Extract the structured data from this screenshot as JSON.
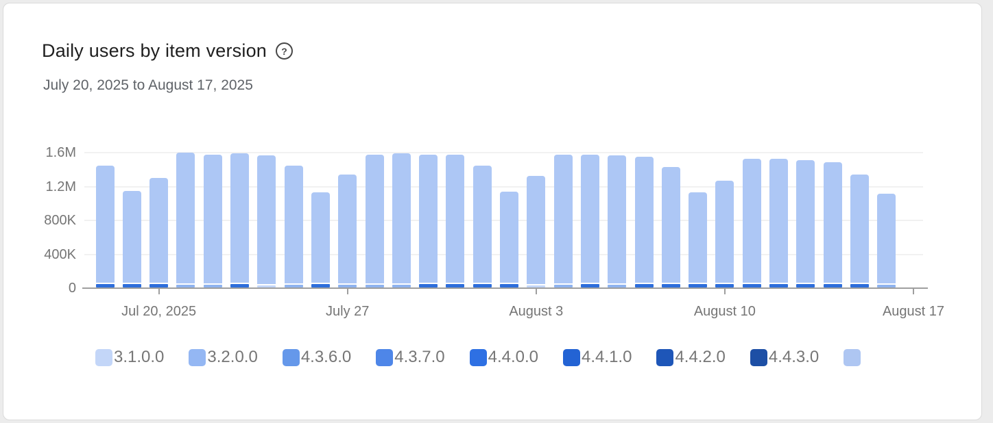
{
  "header": {
    "title": "Daily users by item version",
    "help_icon": "?",
    "subtitle": "July 20, 2025 to August 17, 2025"
  },
  "chart_data": {
    "type": "bar",
    "stacked": true,
    "title": "Daily users by item version",
    "date_range": "July 20, 2025 to August 17, 2025",
    "ylim": [
      0,
      1600000
    ],
    "grid": "horizontal",
    "legend_position": "bottom",
    "yticks": [
      {
        "label": "1.6M",
        "value": 1600000
      },
      {
        "label": "1.2M",
        "value": 1200000
      },
      {
        "label": "800K",
        "value": 800000
      },
      {
        "label": "400K",
        "value": 400000
      },
      {
        "label": "0",
        "value": 0
      }
    ],
    "xticks": [
      {
        "label": "Jul 20, 2025",
        "day_index": 2
      },
      {
        "label": "July 27",
        "day_index": 9
      },
      {
        "label": "August 3",
        "day_index": 16
      },
      {
        "label": "August 10",
        "day_index": 23
      },
      {
        "label": "August 17",
        "day_index": 30
      }
    ],
    "bars": [
      {
        "date": "Jul 18",
        "total": 1440000,
        "base": "bright"
      },
      {
        "date": "Jul 19",
        "total": 1140000,
        "base": "bright"
      },
      {
        "date": "Jul 20",
        "total": 1290000,
        "base": "bright"
      },
      {
        "date": "Jul 21",
        "total": 1590000,
        "base": "light"
      },
      {
        "date": "Jul 22",
        "total": 1570000,
        "base": "light"
      },
      {
        "date": "Jul 23",
        "total": 1580000,
        "base": "bright"
      },
      {
        "date": "Jul 24",
        "total": 1560000,
        "base": "faint"
      },
      {
        "date": "Jul 25",
        "total": 1440000,
        "base": "light"
      },
      {
        "date": "Jul 26",
        "total": 1120000,
        "base": "bright"
      },
      {
        "date": "Jul 27",
        "total": 1330000,
        "base": "light"
      },
      {
        "date": "Jul 28",
        "total": 1570000,
        "base": "light"
      },
      {
        "date": "Jul 29",
        "total": 1580000,
        "base": "light"
      },
      {
        "date": "Jul 30",
        "total": 1570000,
        "base": "bright"
      },
      {
        "date": "Jul 31",
        "total": 1570000,
        "base": "bright"
      },
      {
        "date": "Aug 1",
        "total": 1440000,
        "base": "bright"
      },
      {
        "date": "Aug 2",
        "total": 1130000,
        "base": "bright"
      },
      {
        "date": "Aug 3",
        "total": 1320000,
        "base": "faint"
      },
      {
        "date": "Aug 4",
        "total": 1570000,
        "base": "light"
      },
      {
        "date": "Aug 5",
        "total": 1570000,
        "base": "bright"
      },
      {
        "date": "Aug 6",
        "total": 1560000,
        "base": "light"
      },
      {
        "date": "Aug 7",
        "total": 1540000,
        "base": "bright"
      },
      {
        "date": "Aug 8",
        "total": 1420000,
        "base": "bright"
      },
      {
        "date": "Aug 9",
        "total": 1120000,
        "base": "bright"
      },
      {
        "date": "Aug 10",
        "total": 1260000,
        "base": "bright"
      },
      {
        "date": "Aug 11",
        "total": 1520000,
        "base": "bright"
      },
      {
        "date": "Aug 12",
        "total": 1520000,
        "base": "bright"
      },
      {
        "date": "Aug 13",
        "total": 1500000,
        "base": "bright"
      },
      {
        "date": "Aug 14",
        "total": 1480000,
        "base": "bright"
      },
      {
        "date": "Aug 15",
        "total": 1330000,
        "base": "bright"
      },
      {
        "date": "Aug 16",
        "total": 1110000,
        "base": "light"
      }
    ],
    "series_legend": [
      {
        "name": "3.1.0.0",
        "color": "#c3d6f8"
      },
      {
        "name": "3.2.0.0",
        "color": "#94b7f3"
      },
      {
        "name": "4.3.6.0",
        "color": "#6598ea"
      },
      {
        "name": "4.3.7.0",
        "color": "#4e86e8"
      },
      {
        "name": "4.4.0.0",
        "color": "#2e70e3"
      },
      {
        "name": "4.4.1.0",
        "color": "#2363d4"
      },
      {
        "name": "4.4.2.0",
        "color": "#1e56b8"
      },
      {
        "name": "4.4.3.0",
        "color": "#1d4fa5"
      }
    ],
    "legend_overflow_swatch": {
      "color": "#aec6f2"
    },
    "colors": {
      "bar_body": "#adc7f5",
      "base_bright": "#2e6edb",
      "base_light": "#8fb3ef",
      "base_faint": "#c3d6f8",
      "gridline": "#f1f1f1",
      "axis": "#9e9e9e",
      "axis_text": "#757575",
      "legend_text": "#767676"
    }
  }
}
